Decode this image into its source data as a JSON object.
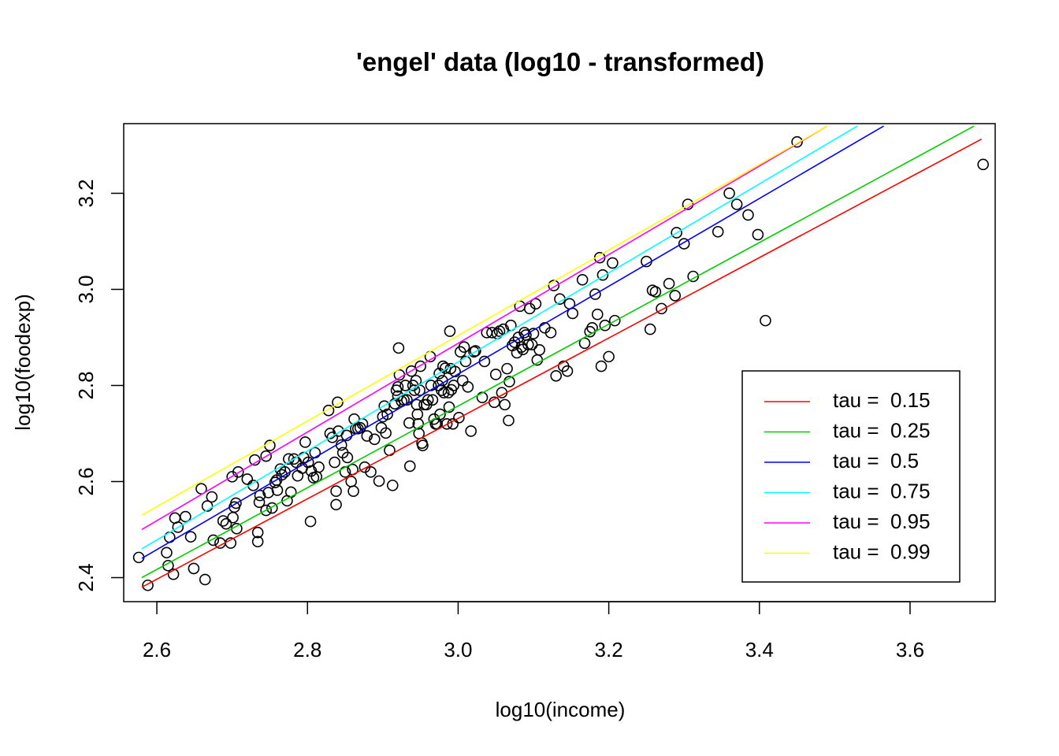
{
  "chart_data": {
    "type": "scatter",
    "title": "'engel' data (log10 - transformed)",
    "xlabel": "log10(income)",
    "ylabel": "log10(foodexp)",
    "xlim": [
      2.556,
      3.713
    ],
    "ylim": [
      2.35,
      3.345
    ],
    "x_ticks": [
      "2.6",
      "2.8",
      "3.0",
      "3.2",
      "3.4",
      "3.6"
    ],
    "y_ticks": [
      "2.4",
      "2.6",
      "2.8",
      "3.0",
      "3.2"
    ],
    "grid": false,
    "legend_position": "bottom-right",
    "lines": [
      {
        "name": "tau =  0.15",
        "color": "#ff0000",
        "x": [
          2.58,
          3.695
        ],
        "y": [
          2.38,
          3.313
        ]
      },
      {
        "name": "tau =  0.25",
        "color": "#00cd00",
        "x": [
          2.58,
          3.685
        ],
        "y": [
          2.4,
          3.34
        ]
      },
      {
        "name": "tau =  0.5",
        "color": "#0000ff",
        "x": [
          2.58,
          3.565
        ],
        "y": [
          2.44,
          3.34
        ]
      },
      {
        "name": "tau =  0.75",
        "color": "#00ffff",
        "x": [
          2.58,
          3.53
        ],
        "y": [
          2.46,
          3.34
        ]
      },
      {
        "name": "tau =  0.95",
        "color": "#ff00ff",
        "x": [
          2.58,
          3.49
        ],
        "y": [
          2.5,
          3.34
        ]
      },
      {
        "name": "tau =  0.99",
        "color": "#ffff00",
        "x": [
          2.58,
          3.49
        ],
        "y": [
          2.53,
          3.34
        ]
      }
    ],
    "points": [
      [
        2.576,
        2.442
      ],
      [
        2.588,
        2.384
      ],
      [
        2.613,
        2.452
      ],
      [
        2.615,
        2.425
      ],
      [
        2.617,
        2.484
      ],
      [
        2.622,
        2.407
      ],
      [
        2.624,
        2.524
      ],
      [
        2.628,
        2.505
      ],
      [
        2.638,
        2.527
      ],
      [
        2.645,
        2.485
      ],
      [
        2.649,
        2.419
      ],
      [
        2.659,
        2.585
      ],
      [
        2.664,
        2.396
      ],
      [
        2.667,
        2.549
      ],
      [
        2.673,
        2.568
      ],
      [
        2.675,
        2.478
      ],
      [
        2.684,
        2.472
      ],
      [
        2.688,
        2.518
      ],
      [
        2.692,
        2.512
      ],
      [
        2.698,
        2.472
      ],
      [
        2.7,
        2.61
      ],
      [
        2.701,
        2.525
      ],
      [
        2.703,
        2.547
      ],
      [
        2.705,
        2.555
      ],
      [
        2.706,
        2.502
      ],
      [
        2.708,
        2.62
      ],
      [
        2.72,
        2.605
      ],
      [
        2.728,
        2.592
      ],
      [
        2.73,
        2.645
      ],
      [
        2.734,
        2.494
      ],
      [
        2.734,
        2.475
      ],
      [
        2.736,
        2.557
      ],
      [
        2.737,
        2.571
      ],
      [
        2.745,
        2.653
      ],
      [
        2.745,
        2.54
      ],
      [
        2.748,
        2.577
      ],
      [
        2.75,
        2.675
      ],
      [
        2.753,
        2.545
      ],
      [
        2.757,
        2.598
      ],
      [
        2.759,
        2.603
      ],
      [
        2.76,
        2.582
      ],
      [
        2.764,
        2.626
      ],
      [
        2.766,
        2.614
      ],
      [
        2.77,
        2.62
      ],
      [
        2.773,
        2.56
      ],
      [
        2.775,
        2.647
      ],
      [
        2.778,
        2.578
      ],
      [
        2.782,
        2.647
      ],
      [
        2.785,
        2.64
      ],
      [
        2.787,
        2.612
      ],
      [
        2.793,
        2.628
      ],
      [
        2.795,
        2.65
      ],
      [
        2.797,
        2.682
      ],
      [
        2.801,
        2.64
      ],
      [
        2.804,
        2.517
      ],
      [
        2.805,
        2.622
      ],
      [
        2.808,
        2.608
      ],
      [
        2.81,
        2.66
      ],
      [
        2.812,
        2.61
      ],
      [
        2.815,
        2.63
      ],
      [
        2.828,
        2.748
      ],
      [
        2.83,
        2.7
      ],
      [
        2.833,
        2.692
      ],
      [
        2.836,
        2.64
      ],
      [
        2.838,
        2.58
      ],
      [
        2.838,
        2.552
      ],
      [
        2.84,
        2.765
      ],
      [
        2.841,
        2.705
      ],
      [
        2.845,
        2.676
      ],
      [
        2.847,
        2.66
      ],
      [
        2.85,
        2.62
      ],
      [
        2.852,
        2.696
      ],
      [
        2.853,
        2.65
      ],
      [
        2.858,
        2.6
      ],
      [
        2.86,
        2.625
      ],
      [
        2.861,
        2.58
      ],
      [
        2.862,
        2.73
      ],
      [
        2.864,
        2.71
      ],
      [
        2.867,
        2.71
      ],
      [
        2.87,
        2.712
      ],
      [
        2.873,
        2.72
      ],
      [
        2.876,
        2.63
      ],
      [
        2.879,
        2.695
      ],
      [
        2.884,
        2.62
      ],
      [
        2.889,
        2.688
      ],
      [
        2.895,
        2.601
      ],
      [
        2.898,
        2.712
      ],
      [
        2.9,
        2.735
      ],
      [
        2.902,
        2.757
      ],
      [
        2.904,
        2.701
      ],
      [
        2.906,
        2.74
      ],
      [
        2.909,
        2.665
      ],
      [
        2.913,
        2.592
      ],
      [
        2.916,
        2.762
      ],
      [
        2.918,
        2.79
      ],
      [
        2.92,
        2.778
      ],
      [
        2.92,
        2.797
      ],
      [
        2.921,
        2.878
      ],
      [
        2.922,
        2.822
      ],
      [
        2.925,
        2.767
      ],
      [
        2.928,
        2.77
      ],
      [
        2.93,
        2.8
      ],
      [
        2.932,
        2.77
      ],
      [
        2.935,
        2.722
      ],
      [
        2.936,
        2.632
      ],
      [
        2.938,
        2.83
      ],
      [
        2.94,
        2.8
      ],
      [
        2.942,
        2.79
      ],
      [
        2.944,
        2.81
      ],
      [
        2.945,
        2.76
      ],
      [
        2.946,
        2.74
      ],
      [
        2.947,
        2.72
      ],
      [
        2.948,
        2.7
      ],
      [
        2.949,
        2.79
      ],
      [
        2.95,
        2.84
      ],
      [
        2.952,
        2.68
      ],
      [
        2.953,
        2.675
      ],
      [
        2.955,
        2.76
      ],
      [
        2.958,
        2.76
      ],
      [
        2.96,
        2.77
      ],
      [
        2.963,
        2.86
      ],
      [
        2.964,
        2.8
      ],
      [
        2.966,
        2.77
      ],
      [
        2.968,
        2.73
      ],
      [
        2.97,
        2.72
      ],
      [
        2.972,
        2.72
      ],
      [
        2.974,
        2.8
      ],
      [
        2.975,
        2.825
      ],
      [
        2.976,
        2.74
      ],
      [
        2.978,
        2.79
      ],
      [
        2.979,
        2.81
      ],
      [
        2.98,
        2.84
      ],
      [
        2.981,
        2.785
      ],
      [
        2.983,
        2.836
      ],
      [
        2.985,
        2.72
      ],
      [
        2.987,
        2.785
      ],
      [
        2.988,
        2.755
      ],
      [
        2.989,
        2.913
      ],
      [
        2.99,
        2.835
      ],
      [
        2.991,
        2.791
      ],
      [
        2.993,
        2.72
      ],
      [
        2.994,
        2.8
      ],
      [
        2.996,
        2.829
      ],
      [
        3.001,
        2.733
      ],
      [
        3.003,
        2.87
      ],
      [
        3.006,
        2.81
      ],
      [
        3.008,
        2.88
      ],
      [
        3.01,
        2.85
      ],
      [
        3.013,
        2.797
      ],
      [
        3.017,
        2.705
      ],
      [
        3.021,
        2.87
      ],
      [
        3.023,
        2.872
      ],
      [
        3.032,
        2.775
      ],
      [
        3.035,
        2.85
      ],
      [
        3.038,
        2.91
      ],
      [
        3.045,
        2.91
      ],
      [
        3.048,
        2.765
      ],
      [
        3.05,
        2.823
      ],
      [
        3.052,
        2.908
      ],
      [
        3.055,
        2.913
      ],
      [
        3.058,
        2.785
      ],
      [
        3.06,
        2.917
      ],
      [
        3.062,
        2.76
      ],
      [
        3.065,
        2.835
      ],
      [
        3.067,
        2.727
      ],
      [
        3.068,
        2.808
      ],
      [
        3.07,
        2.925
      ],
      [
        3.072,
        2.883
      ],
      [
        3.075,
        2.89
      ],
      [
        3.078,
        2.868
      ],
      [
        3.08,
        2.9
      ],
      [
        3.082,
        2.965
      ],
      [
        3.084,
        2.88
      ],
      [
        3.086,
        2.875
      ],
      [
        3.088,
        2.91
      ],
      [
        3.09,
        2.905
      ],
      [
        3.093,
        2.885
      ],
      [
        3.095,
        2.96
      ],
      [
        3.098,
        2.885
      ],
      [
        3.1,
        2.908
      ],
      [
        3.103,
        2.97
      ],
      [
        3.105,
        2.853
      ],
      [
        3.108,
        2.874
      ],
      [
        3.115,
        2.92
      ],
      [
        3.123,
        2.91
      ],
      [
        3.127,
        3.008
      ],
      [
        3.13,
        2.82
      ],
      [
        3.135,
        2.98
      ],
      [
        3.14,
        2.84
      ],
      [
        3.145,
        2.83
      ],
      [
        3.148,
        2.97
      ],
      [
        3.152,
        2.95
      ],
      [
        3.165,
        3.02
      ],
      [
        3.168,
        2.888
      ],
      [
        3.175,
        2.912
      ],
      [
        3.178,
        2.92
      ],
      [
        3.182,
        2.99
      ],
      [
        3.185,
        2.948
      ],
      [
        3.188,
        3.066
      ],
      [
        3.19,
        2.84
      ],
      [
        3.192,
        3.03
      ],
      [
        3.195,
        2.925
      ],
      [
        3.2,
        2.86
      ],
      [
        3.205,
        3.055
      ],
      [
        3.208,
        2.935
      ],
      [
        3.25,
        3.058
      ],
      [
        3.255,
        2.917
      ],
      [
        3.258,
        2.998
      ],
      [
        3.262,
        2.995
      ],
      [
        3.27,
        2.96
      ],
      [
        3.28,
        3.012
      ],
      [
        3.288,
        2.987
      ],
      [
        3.29,
        3.118
      ],
      [
        3.3,
        3.095
      ],
      [
        3.305,
        3.177
      ],
      [
        3.312,
        3.027
      ],
      [
        3.345,
        3.12
      ],
      [
        3.36,
        3.2
      ],
      [
        3.37,
        3.177
      ],
      [
        3.385,
        3.155
      ],
      [
        3.398,
        3.114
      ],
      [
        3.408,
        2.935
      ],
      [
        3.45,
        3.307
      ],
      [
        3.697,
        3.26
      ]
    ]
  }
}
